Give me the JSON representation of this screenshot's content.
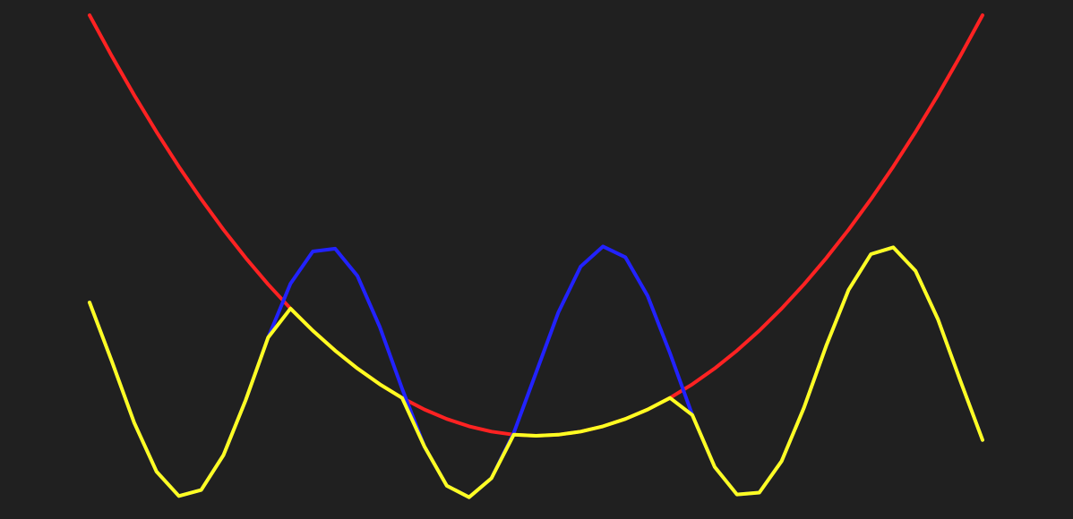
{
  "chart_data": {
    "type": "line",
    "x": [
      0,
      0.25,
      0.5,
      0.75,
      1,
      1.25,
      1.5,
      1.75,
      2,
      2.25,
      2.5,
      2.75,
      3,
      3.25,
      3.5,
      3.75,
      4,
      4.25,
      4.5,
      4.75,
      5,
      5.25,
      5.5,
      5.75,
      6,
      6.25,
      6.5,
      6.75,
      7,
      7.25,
      7.5,
      7.75,
      8,
      8.25,
      8.5,
      8.75,
      9,
      9.25,
      9.5,
      9.75,
      10
    ],
    "xlim": [
      0,
      10
    ],
    "ylim": [
      0,
      580
    ],
    "series": [
      {
        "color": "#ff2222",
        "values": [
          563,
          517.2,
          473.7,
          432.6,
          393.8,
          357.4,
          323.3,
          291.6,
          262.2,
          235.2,
          210.5,
          188.2,
          168.2,
          150.6,
          135.3,
          122.4,
          111.8,
          103.6,
          97.7,
          94.2,
          93,
          94.2,
          97.7,
          103.6,
          111.8,
          122.4,
          135.3,
          150.6,
          168.2,
          188.2,
          210.5,
          235.2,
          262.2,
          291.6,
          323.3,
          357.4,
          393.8,
          432.6,
          473.7,
          517.2,
          563
        ]
      },
      {
        "color": "#2222ff",
        "values": [
          242.0,
          176.1,
          107.6,
          53.0,
          25.7,
          32.4,
          71.5,
          133.3,
          202.9,
          263.0,
          299.0,
          302.1,
          271.6,
          214.7,
          145.7,
          81.0,
          37.2,
          24.3,
          45.5,
          96.1,
          163.5,
          231.0,
          282.2,
          304.6,
          292.6,
          249.2,
          185.3,
          116.2,
          58.3,
          27.4,
          29.5,
          64.7,
          124.3,
          193.7,
          256.1,
          296.0,
          303.6,
          277.2,
          223.4,
          154.9,
          88.3
        ]
      },
      {
        "color": "#ffff22",
        "values": [
          242.0,
          176.1,
          107.6,
          53.0,
          25.7,
          32.4,
          71.5,
          133.3,
          202.9,
          235.2,
          210.5,
          188.2,
          168.2,
          150.6,
          135.3,
          81.0,
          37.2,
          24.3,
          45.5,
          94.2,
          93,
          94.2,
          97.7,
          103.6,
          111.8,
          122.4,
          135.3,
          116.2,
          58.3,
          27.4,
          29.5,
          64.7,
          124.3,
          193.7,
          256.1,
          296.0,
          303.6,
          277.2,
          223.4,
          154.9,
          88.3
        ]
      }
    ]
  }
}
